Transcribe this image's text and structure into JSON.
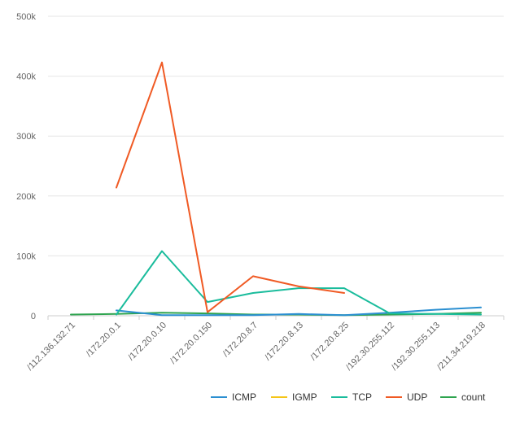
{
  "chart_data": {
    "type": "line",
    "title": "",
    "xlabel": "",
    "ylabel": "",
    "categories": [
      "/112.136.132.71",
      "/172.20.0.1",
      "/172.20.0.10",
      "/172.20.0.150",
      "/172.20.8.7",
      "/172.20.8.13",
      "/172.20.8.25",
      "/192.30.255.112",
      "/192.30.255.113",
      "/211.34.219.218"
    ],
    "ylim": [
      0,
      500000
    ],
    "yticks": [
      {
        "value": 0,
        "label": "0"
      },
      {
        "value": 100000,
        "label": "100k"
      },
      {
        "value": 200000,
        "label": "200k"
      },
      {
        "value": 300000,
        "label": "300k"
      },
      {
        "value": 400000,
        "label": "400k"
      },
      {
        "value": 500000,
        "label": "500k"
      }
    ],
    "grid": true,
    "legend_position": "bottom-right",
    "series": [
      {
        "name": "ICMP",
        "color": "#2b8fd1",
        "values": [
          null,
          9000,
          1000,
          1000,
          1000,
          3000,
          1000,
          5000,
          10000,
          14000
        ]
      },
      {
        "name": "IGMP",
        "color": "#f5c518",
        "values": [
          null,
          null,
          null,
          null,
          null,
          null,
          null,
          null,
          null,
          null
        ]
      },
      {
        "name": "TCP",
        "color": "#1abc9c",
        "values": [
          null,
          2000,
          108000,
          23000,
          38000,
          46000,
          46000,
          4000,
          3000,
          2000
        ]
      },
      {
        "name": "UDP",
        "color": "#f05a24",
        "values": [
          null,
          214000,
          423000,
          6000,
          66000,
          49000,
          38000,
          null,
          null,
          null
        ]
      },
      {
        "name": "count",
        "color": "#2ea44f",
        "values": [
          2000,
          3000,
          5000,
          4000,
          2000,
          2000,
          1000,
          2000,
          3000,
          5000
        ]
      }
    ]
  }
}
